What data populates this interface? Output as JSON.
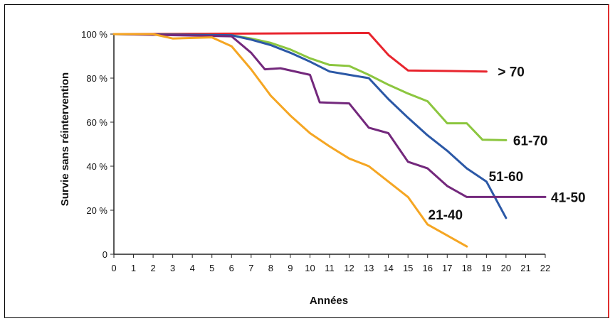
{
  "chart_data": {
    "type": "line",
    "title": "",
    "xlabel": "Années",
    "ylabel": "Survie sans réintervention",
    "xlim": [
      0,
      22
    ],
    "ylim": [
      0,
      100
    ],
    "x_ticks": [
      "0",
      "1",
      "2",
      "3",
      "4",
      "5",
      "6",
      "7",
      "8",
      "9",
      "10",
      "11",
      "12",
      "13",
      "14",
      "15",
      "16",
      "17",
      "18",
      "19",
      "20",
      "21",
      "22"
    ],
    "y_ticks": [
      {
        "value": 0,
        "label": "0"
      },
      {
        "value": 20,
        "label": "20 %"
      },
      {
        "value": 40,
        "label": "40 %"
      },
      {
        "value": 60,
        "label": "60 %"
      },
      {
        "value": 80,
        "label": "80 %"
      },
      {
        "value": 100,
        "label": "100 %"
      }
    ],
    "grid": false,
    "legend": "inline labels at line ends",
    "series": [
      {
        "name": "> 70",
        "color": "#e8252e",
        "points": [
          [
            0,
            100
          ],
          [
            13,
            100.5
          ],
          [
            14,
            90.5
          ],
          [
            15,
            83.5
          ],
          [
            19,
            83
          ]
        ]
      },
      {
        "name": "61-70",
        "color": "#8cc63f",
        "points": [
          [
            0,
            100
          ],
          [
            6,
            99.5
          ],
          [
            7,
            98
          ],
          [
            8,
            96
          ],
          [
            9,
            93
          ],
          [
            10,
            89
          ],
          [
            11,
            86
          ],
          [
            12,
            85.5
          ],
          [
            13,
            81.5
          ],
          [
            14,
            77
          ],
          [
            15,
            73
          ],
          [
            16,
            69.5
          ],
          [
            17,
            59.5
          ],
          [
            18,
            59.5
          ],
          [
            18.8,
            52
          ],
          [
            20,
            51.8
          ]
        ]
      },
      {
        "name": "51-60",
        "color": "#2b58a6",
        "points": [
          [
            0,
            100
          ],
          [
            6,
            99.5
          ],
          [
            7,
            97.5
          ],
          [
            8,
            95
          ],
          [
            9,
            91.5
          ],
          [
            10,
            87.5
          ],
          [
            11,
            83
          ],
          [
            12,
            81.5
          ],
          [
            13,
            80
          ],
          [
            14,
            70.5
          ],
          [
            15,
            62
          ],
          [
            16,
            54
          ],
          [
            17,
            47
          ],
          [
            18,
            39
          ],
          [
            19,
            33
          ],
          [
            20,
            16.5
          ]
        ]
      },
      {
        "name": "41-50",
        "color": "#73287c",
        "points": [
          [
            0,
            100
          ],
          [
            6,
            99
          ],
          [
            7,
            91.5
          ],
          [
            7.7,
            84
          ],
          [
            8.5,
            84.5
          ],
          [
            10,
            81.5
          ],
          [
            10.5,
            69
          ],
          [
            12,
            68.5
          ],
          [
            13,
            57.5
          ],
          [
            14,
            55
          ],
          [
            15,
            42
          ],
          [
            16,
            39
          ],
          [
            17,
            31
          ],
          [
            18,
            26
          ],
          [
            22,
            26
          ]
        ]
      },
      {
        "name": "21-40",
        "color": "#f5a623",
        "points": [
          [
            0,
            100
          ],
          [
            2,
            100
          ],
          [
            3,
            98
          ],
          [
            5,
            98.5
          ],
          [
            6,
            94.5
          ],
          [
            7,
            84
          ],
          [
            8,
            72
          ],
          [
            9,
            63
          ],
          [
            10,
            55
          ],
          [
            11,
            49
          ],
          [
            12,
            43.5
          ],
          [
            13,
            40
          ],
          [
            14,
            33
          ],
          [
            15,
            26
          ],
          [
            16,
            13.5
          ],
          [
            17,
            8.5
          ],
          [
            18,
            3.5
          ]
        ]
      }
    ]
  }
}
